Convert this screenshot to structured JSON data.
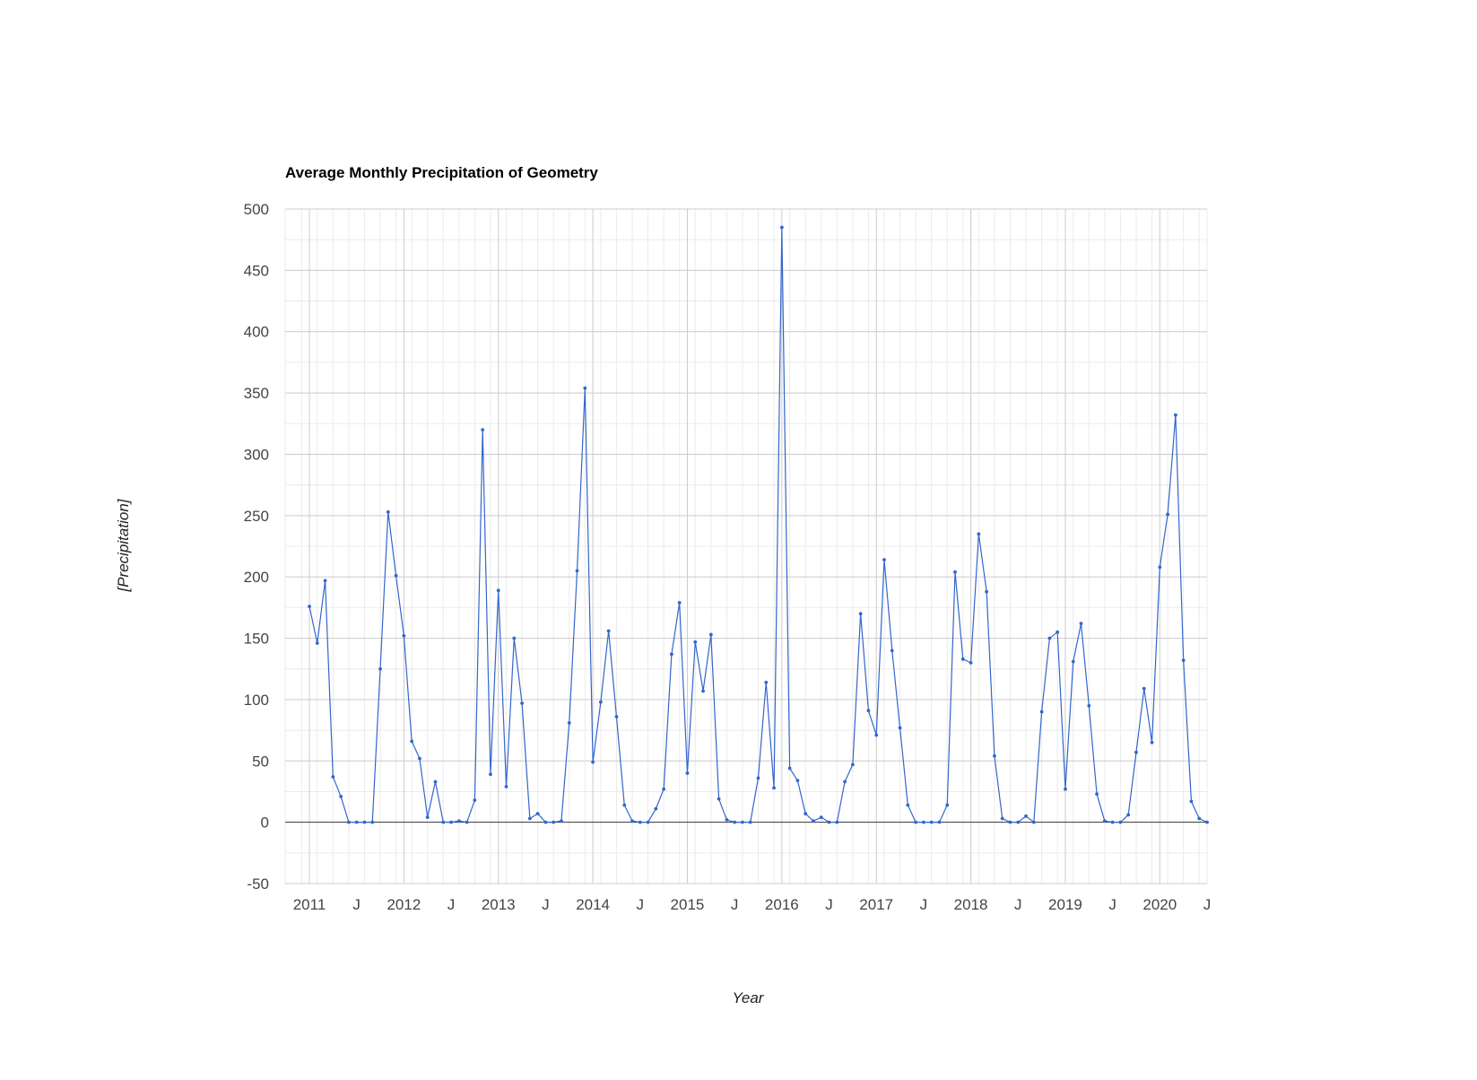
{
  "chart_data": {
    "type": "line",
    "title": "Average Monthly Precipitation of Geometry",
    "xlabel": "Year",
    "ylabel": "[Precipitation]",
    "ylim": [
      -50,
      500
    ],
    "yticks": [
      -50,
      0,
      50,
      100,
      150,
      200,
      250,
      300,
      350,
      400,
      450,
      500
    ],
    "xlim": [
      "2011-01",
      "2020-07"
    ],
    "xtick_labels": [
      {
        "label": "2011",
        "x": "2011-01"
      },
      {
        "label": "J",
        "x": "2011-07"
      },
      {
        "label": "2012",
        "x": "2012-01"
      },
      {
        "label": "J",
        "x": "2012-07"
      },
      {
        "label": "2013",
        "x": "2013-01"
      },
      {
        "label": "J",
        "x": "2013-07"
      },
      {
        "label": "2014",
        "x": "2014-01"
      },
      {
        "label": "J",
        "x": "2014-07"
      },
      {
        "label": "2015",
        "x": "2015-01"
      },
      {
        "label": "J",
        "x": "2015-07"
      },
      {
        "label": "2016",
        "x": "2016-01"
      },
      {
        "label": "J",
        "x": "2016-07"
      },
      {
        "label": "2017",
        "x": "2017-01"
      },
      {
        "label": "J",
        "x": "2017-07"
      },
      {
        "label": "2018",
        "x": "2018-01"
      },
      {
        "label": "J",
        "x": "2018-07"
      },
      {
        "label": "2019",
        "x": "2019-01"
      },
      {
        "label": "J",
        "x": "2019-07"
      },
      {
        "label": "2020",
        "x": "2020-01"
      },
      {
        "label": "J",
        "x": "2020-07"
      }
    ],
    "grid": true,
    "legend": "none",
    "colors": {
      "series": "#3366cc",
      "grid_major": "#cccccc",
      "grid_minor": "#ebebeb",
      "zero_line": "#333333",
      "title": "#000000",
      "ticks": "#444444"
    },
    "series": [
      {
        "x": [
          "2011-01",
          "2011-02",
          "2011-03",
          "2011-04",
          "2011-05",
          "2011-06",
          "2011-07",
          "2011-08",
          "2011-09",
          "2011-10",
          "2011-11",
          "2011-12",
          "2012-01",
          "2012-02",
          "2012-03",
          "2012-04",
          "2012-05",
          "2012-06",
          "2012-07",
          "2012-08",
          "2012-09",
          "2012-10",
          "2012-11",
          "2012-12",
          "2013-01",
          "2013-02",
          "2013-03",
          "2013-04",
          "2013-05",
          "2013-06",
          "2013-07",
          "2013-08",
          "2013-09",
          "2013-10",
          "2013-11",
          "2013-12",
          "2014-01",
          "2014-02",
          "2014-03",
          "2014-04",
          "2014-05",
          "2014-06",
          "2014-07",
          "2014-08",
          "2014-09",
          "2014-10",
          "2014-11",
          "2014-12",
          "2015-01",
          "2015-02",
          "2015-03",
          "2015-04",
          "2015-05",
          "2015-06",
          "2015-07",
          "2015-08",
          "2015-09",
          "2015-10",
          "2015-11",
          "2015-12",
          "2016-01",
          "2016-02",
          "2016-03",
          "2016-04",
          "2016-05",
          "2016-06",
          "2016-07",
          "2016-08",
          "2016-09",
          "2016-10",
          "2016-11",
          "2016-12",
          "2017-01",
          "2017-02",
          "2017-03",
          "2017-04",
          "2017-05",
          "2017-06",
          "2017-07",
          "2017-08",
          "2017-09",
          "2017-10",
          "2017-11",
          "2017-12",
          "2018-01",
          "2018-02",
          "2018-03",
          "2018-04",
          "2018-05",
          "2018-06",
          "2018-07",
          "2018-08",
          "2018-09",
          "2018-10",
          "2018-11",
          "2018-12",
          "2019-01",
          "2019-02",
          "2019-03",
          "2019-04",
          "2019-05",
          "2019-06",
          "2019-07",
          "2019-08",
          "2019-09",
          "2019-10",
          "2019-11",
          "2019-12",
          "2020-01",
          "2020-02",
          "2020-03",
          "2020-04",
          "2020-05",
          "2020-06",
          "2020-07"
        ],
        "values": [
          176,
          146,
          197,
          37,
          21,
          0,
          0,
          0,
          0,
          125,
          253,
          201,
          152,
          66,
          52,
          4,
          33,
          0,
          0,
          1,
          0,
          18,
          320,
          39,
          189,
          29,
          150,
          97,
          3,
          7,
          0,
          0,
          1,
          81,
          205,
          354,
          49,
          98,
          156,
          86,
          14,
          1,
          0,
          0,
          11,
          27,
          137,
          179,
          40,
          147,
          107,
          153,
          19,
          2,
          0,
          0,
          0,
          36,
          114,
          28,
          485,
          44,
          34,
          7,
          1,
          4,
          0,
          0,
          33,
          47,
          170,
          91,
          71,
          214,
          140,
          77,
          14,
          0,
          0,
          0,
          0,
          14,
          204,
          133,
          130,
          235,
          188,
          54,
          3,
          0,
          0,
          5,
          0,
          90,
          150,
          155,
          27,
          131,
          162,
          95,
          23,
          1,
          0,
          0,
          6,
          57,
          109,
          65,
          208,
          251,
          332,
          132,
          17,
          3,
          0
        ]
      }
    ]
  }
}
